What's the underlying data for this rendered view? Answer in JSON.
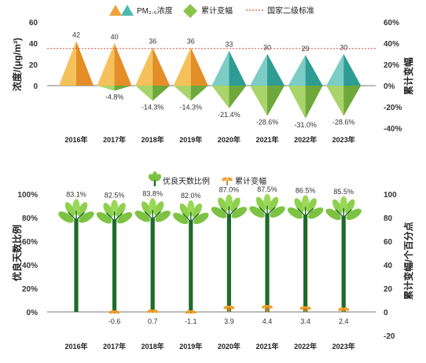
{
  "chart_data": [
    {
      "type": "bar",
      "categories": [
        "2016年",
        "2017年",
        "2018年",
        "2019年",
        "2020年",
        "2021年",
        "2022年",
        "2023年"
      ],
      "series": [
        {
          "name": "PM₂.₅浓度",
          "axis": "left",
          "values": [
            42,
            40,
            36,
            36,
            33,
            30,
            29,
            30
          ],
          "labels": [
            "42",
            "40",
            "36",
            "36",
            "33",
            "30",
            "29",
            "30"
          ]
        },
        {
          "name": "累计变幅",
          "axis": "right",
          "values": [
            null,
            -4.8,
            -14.3,
            -14.3,
            -21.4,
            -28.6,
            -31.0,
            -28.6
          ],
          "labels": [
            "",
            "-4.8%",
            "-14.3%",
            "-14.3%",
            "-21.4%",
            "-28.6%",
            "-31.0%",
            "-28.6%"
          ]
        }
      ],
      "reference_line": {
        "name": "国家二级标准",
        "value": 35
      },
      "ylabel": "浓度/(μg/m³)",
      "y2label": "累计变幅",
      "ylim": [
        0,
        60
      ],
      "y2lim": [
        -40,
        60
      ],
      "yticks": [
        "0",
        "20",
        "40",
        "60"
      ],
      "y2ticks": [
        "-40%",
        "-20%",
        "0%",
        "20%",
        "40%",
        "60%"
      ],
      "colors": {
        "pm_orange": "#EFA23A",
        "pm_teal": "#4FB8B0",
        "change_green": "#8BC34A",
        "reference": "#E04A3A"
      },
      "legend_position": "top"
    },
    {
      "type": "bar",
      "categories": [
        "2016年",
        "2017年",
        "2018年",
        "2019年",
        "2020年",
        "2021年",
        "2022年",
        "2023年"
      ],
      "series": [
        {
          "name": "优良天数比例",
          "axis": "left",
          "values": [
            83.1,
            82.5,
            83.8,
            82.0,
            87.0,
            87.5,
            86.5,
            85.5
          ],
          "labels": [
            "83.1%",
            "82.5%",
            "83.8%",
            "82.0%",
            "87.0%",
            "87.5%",
            "86.5%",
            "85.5%"
          ]
        },
        {
          "name": "累计变幅",
          "axis": "right",
          "values": [
            null,
            -0.6,
            0.7,
            -1.1,
            3.9,
            4.4,
            3.4,
            2.4
          ],
          "labels": [
            "",
            "-0.6",
            "0.7",
            "-1.1",
            "3.9",
            "4.4",
            "3.4",
            "2.4"
          ]
        }
      ],
      "ylabel": "优良天数比例",
      "y2label": "累计变幅/个百分点",
      "ylim": [
        0,
        100
      ],
      "y2lim": [
        -20,
        100
      ],
      "yticks": [
        "0%",
        "20%",
        "40%",
        "60%",
        "80%",
        "100%"
      ],
      "y2ticks": [
        "-20",
        "0",
        "20",
        "40",
        "60",
        "80",
        "100"
      ],
      "colors": {
        "tree_green": "#7DC242",
        "trunk": "#1E6B2A",
        "change_orange": "#F0A030"
      },
      "legend_position": "top"
    }
  ]
}
